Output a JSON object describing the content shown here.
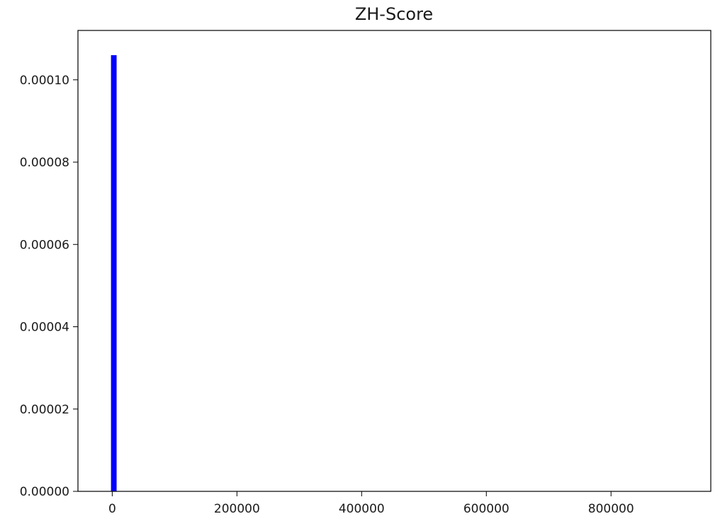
{
  "chart_data": {
    "type": "bar",
    "title": "ZH-Score",
    "xlabel": "",
    "ylabel": "",
    "xlim": [
      -55000,
      960000
    ],
    "ylim": [
      0,
      0.000112
    ],
    "x_ticks": [
      0,
      200000,
      400000,
      600000,
      800000
    ],
    "x_tick_labels": [
      "0",
      "200000",
      "400000",
      "600000",
      "800000"
    ],
    "y_ticks": [
      0,
      2e-05,
      4e-05,
      6e-05,
      8e-05,
      0.0001
    ],
    "y_tick_labels": [
      "0.00000",
      "0.00002",
      "0.00004",
      "0.00006",
      "0.00008",
      "0.00010"
    ],
    "bars": [
      {
        "x0": -2000,
        "x1": 7000,
        "value": 0.000106
      }
    ],
    "bar_color": "#0000ff",
    "grid": false,
    "legend": "none"
  }
}
